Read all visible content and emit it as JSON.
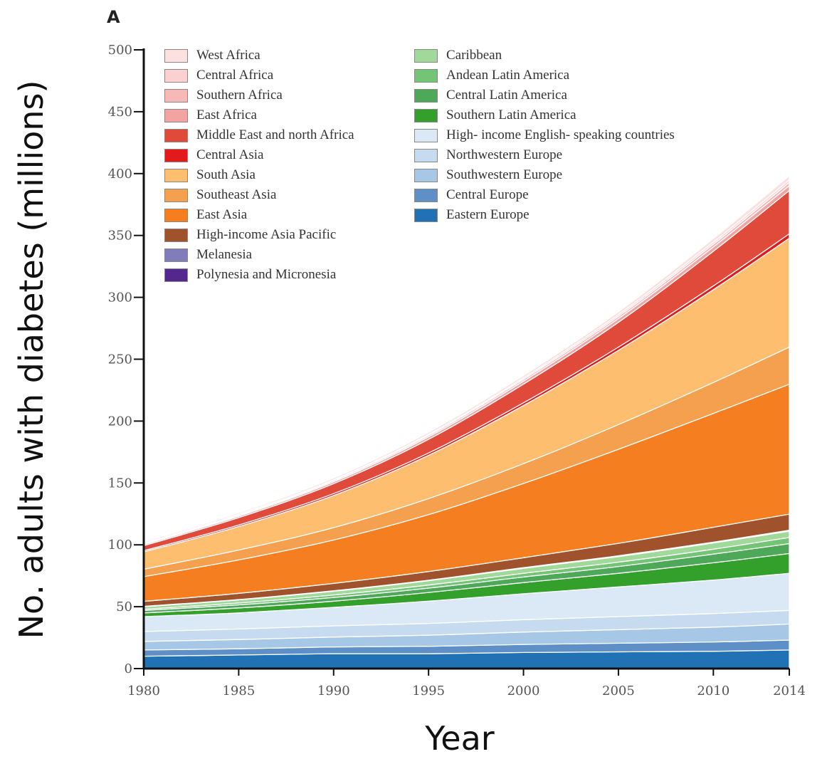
{
  "panel_label": "A",
  "chart_data": {
    "type": "area",
    "stacked": true,
    "xlabel": "Year",
    "ylabel": "No. adults with diabetes (millions)",
    "xlim": [
      1980,
      2014
    ],
    "ylim": [
      0,
      500
    ],
    "x_ticks": [
      1980,
      1985,
      1990,
      1995,
      2000,
      2005,
      2010,
      2014
    ],
    "y_ticks": [
      0,
      50,
      100,
      150,
      200,
      250,
      300,
      350,
      400,
      450,
      500
    ],
    "grid": false,
    "legend_position": "top-left",
    "x": [
      1980,
      1985,
      1990,
      1995,
      2000,
      2005,
      2010,
      2014
    ],
    "series": [
      {
        "name": "Eastern Europe",
        "color": "#2171b5",
        "values": [
          10,
          11,
          12,
          12,
          13,
          13.5,
          14,
          15
        ]
      },
      {
        "name": "Central Europe",
        "color": "#5e8fc7",
        "values": [
          5,
          5,
          5.5,
          6,
          6.5,
          7,
          7.5,
          8
        ]
      },
      {
        "name": "Southwestern Europe",
        "color": "#a6c8e6",
        "values": [
          7,
          7.5,
          8,
          9,
          10,
          11,
          12,
          13
        ]
      },
      {
        "name": "Northwestern Europe",
        "color": "#c6dbef",
        "values": [
          8,
          8.5,
          9,
          9.5,
          10,
          10.5,
          11,
          11
        ]
      },
      {
        "name": "High- income English- speaking countries",
        "color": "#dbe9f6",
        "values": [
          12,
          13,
          15,
          18,
          21,
          24,
          27,
          30
        ]
      },
      {
        "name": "Southern Latin America",
        "color": "#33a02c",
        "values": [
          3,
          4,
          5,
          7,
          9,
          11,
          14,
          16
        ]
      },
      {
        "name": "Central Latin America",
        "color": "#4ea85a",
        "values": [
          2,
          2.5,
          3,
          3.5,
          4.5,
          5.5,
          7,
          8
        ]
      },
      {
        "name": "Andean Latin America",
        "color": "#74c476",
        "values": [
          1,
          1.5,
          2,
          2.5,
          3,
          3.5,
          4,
          5
        ]
      },
      {
        "name": "Caribbean",
        "color": "#a1d99b",
        "values": [
          2,
          2.5,
          3,
          3.5,
          4,
          4.5,
          5,
          5
        ]
      },
      {
        "name": "Polynesia and Micronesia",
        "color": "#54278f",
        "values": [
          0.1,
          0.1,
          0.1,
          0.1,
          0.2,
          0.2,
          0.2,
          0.2
        ]
      },
      {
        "name": "Melanesia",
        "color": "#807dba",
        "values": [
          0.2,
          0.2,
          0.3,
          0.3,
          0.4,
          0.5,
          0.5,
          0.6
        ]
      },
      {
        "name": "High-income Asia Pacific",
        "color": "#a0522d",
        "values": [
          4,
          5,
          6,
          7,
          8,
          10,
          12,
          13
        ]
      },
      {
        "name": "East Asia",
        "color": "#f47e20",
        "values": [
          20,
          27,
          35,
          46,
          60,
          76,
          92,
          105
        ]
      },
      {
        "name": "Southeast Asia",
        "color": "#f5a04e",
        "values": [
          6,
          8,
          10,
          13,
          16,
          20,
          25,
          30
        ]
      },
      {
        "name": "South Asia",
        "color": "#fdbe6f",
        "values": [
          14,
          19,
          26,
          35,
          47,
          60,
          75,
          88
        ]
      },
      {
        "name": "Central Asia",
        "color": "#e31a1c",
        "values": [
          1,
          1.2,
          1.5,
          1.8,
          2.2,
          2.6,
          3,
          3.5
        ]
      },
      {
        "name": "Middle East and north Africa",
        "color": "#e04a3a",
        "values": [
          4,
          6,
          8,
          11,
          15,
          20,
          28,
          35
        ]
      },
      {
        "name": "East Africa",
        "color": "#f4a3a3",
        "values": [
          1,
          1.2,
          1.5,
          2,
          2.5,
          3,
          3.5,
          4
        ]
      },
      {
        "name": "Southern Africa",
        "color": "#f7b8b8",
        "values": [
          0.7,
          0.8,
          1,
          1.2,
          1.5,
          1.8,
          2.2,
          2.5
        ]
      },
      {
        "name": "Central Africa",
        "color": "#fbd0d0",
        "values": [
          0.5,
          0.6,
          0.7,
          0.9,
          1.1,
          1.4,
          1.7,
          2
        ]
      },
      {
        "name": "West Africa",
        "color": "#fde0e0",
        "values": [
          1,
          1.2,
          1.4,
          1.7,
          2,
          2.4,
          3,
          3.5
        ]
      }
    ],
    "legend_col1": [
      {
        "label": "West Africa",
        "color": "#fde0e0"
      },
      {
        "label": "Central Africa",
        "color": "#fbd0d0"
      },
      {
        "label": "Southern Africa",
        "color": "#f7b8b8"
      },
      {
        "label": "East Africa",
        "color": "#f4a3a3"
      },
      {
        "label": "Middle East and north Africa",
        "color": "#e04a3a"
      },
      {
        "label": "Central Asia",
        "color": "#e31a1c"
      },
      {
        "label": "South Asia",
        "color": "#fdbe6f"
      },
      {
        "label": "Southeast Asia",
        "color": "#f5a04e"
      },
      {
        "label": "East Asia",
        "color": "#f47e20"
      },
      {
        "label": "High-income Asia Pacific",
        "color": "#a0522d"
      },
      {
        "label": "Melanesia",
        "color": "#807dba"
      },
      {
        "label": "Polynesia and Micronesia",
        "color": "#54278f"
      }
    ],
    "legend_col2": [
      {
        "label": "Caribbean",
        "color": "#a1d99b"
      },
      {
        "label": "Andean Latin America",
        "color": "#74c476"
      },
      {
        "label": "Central Latin America",
        "color": "#4ea85a"
      },
      {
        "label": "Southern Latin America",
        "color": "#33a02c"
      },
      {
        "label": "High- income English- speaking countries",
        "color": "#dbe9f6"
      },
      {
        "label": "Northwestern Europe",
        "color": "#c6dbef"
      },
      {
        "label": "Southwestern Europe",
        "color": "#a6c8e6"
      },
      {
        "label": "Central Europe",
        "color": "#5e8fc7"
      },
      {
        "label": "Eastern Europe",
        "color": "#2171b5"
      }
    ]
  }
}
